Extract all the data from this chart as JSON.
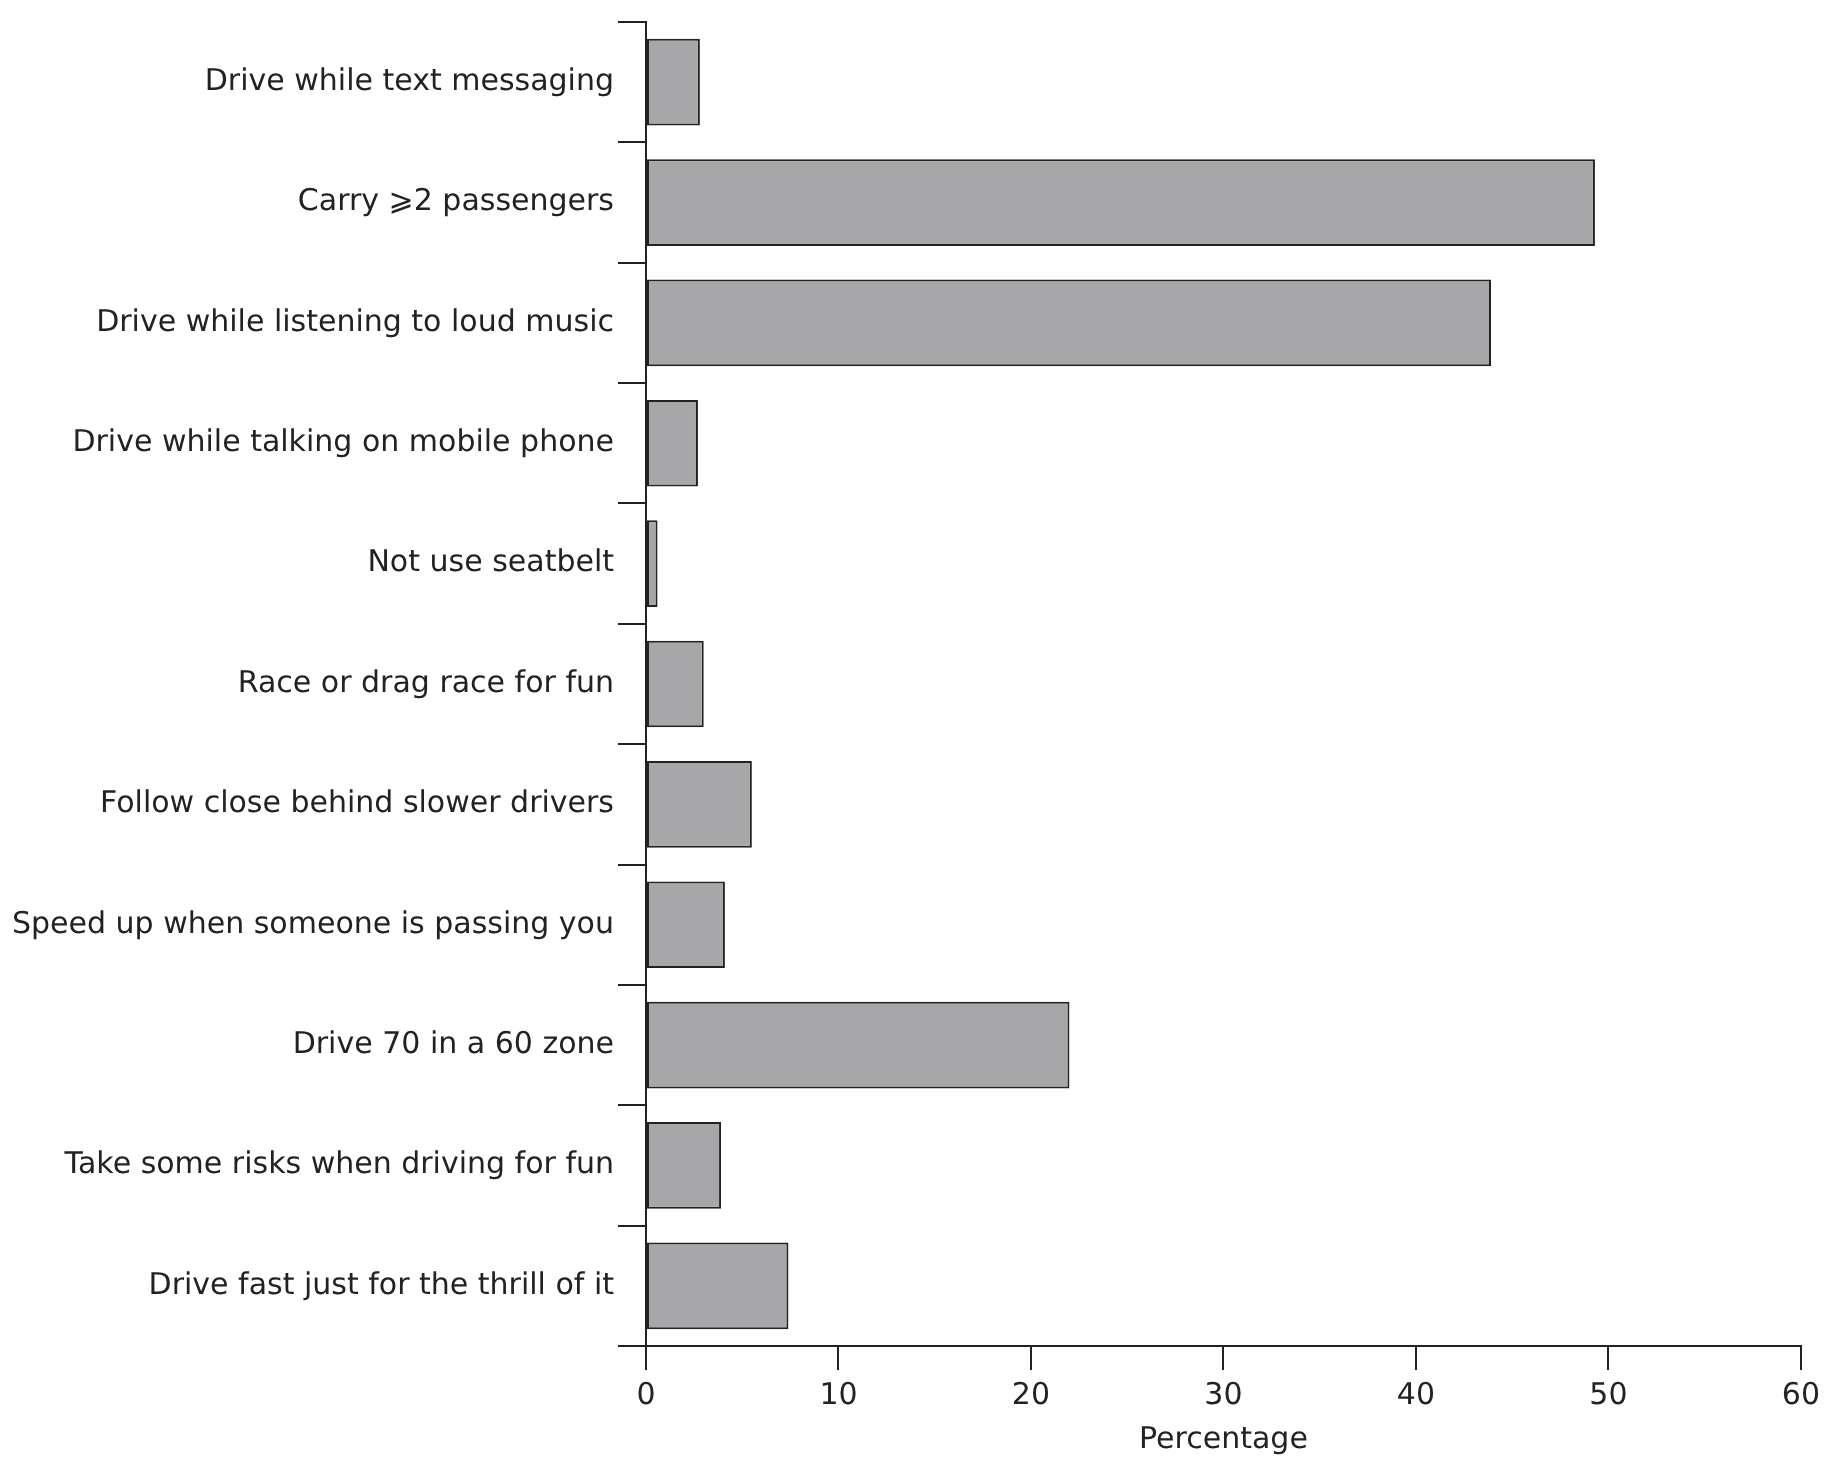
{
  "chart_data": {
    "type": "bar",
    "orientation": "horizontal",
    "xlabel": "Percentage",
    "categories": [
      "Drive while text messaging",
      "Carry ⩾2 passengers",
      "Drive while listening to loud music",
      "Drive while talking on mobile phone",
      "Not use seatbelt",
      "Race or drag race for fun",
      "Follow close behind slower drivers",
      "Speed up when someone is passing you",
      "Drive 70 in a 60 zone",
      "Take some risks when driving for fun",
      "Drive fast just for the thrill of it"
    ],
    "values": [
      2.8,
      49.3,
      43.9,
      2.7,
      0.6,
      3.0,
      5.5,
      4.1,
      22.0,
      3.9,
      7.4
    ],
    "color": "#a7a7aa",
    "xlim": [
      0,
      60
    ],
    "xticks": [
      0,
      10,
      20,
      30,
      40,
      50,
      60
    ],
    "grid": false,
    "legend": false
  }
}
